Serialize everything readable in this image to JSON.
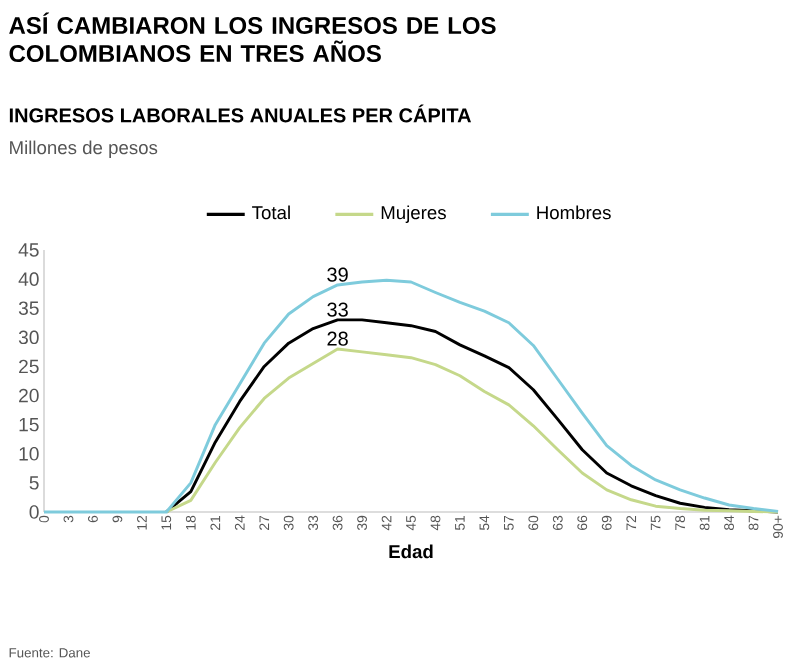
{
  "chart_data": {
    "type": "line",
    "title": "ASÍ CAMBIARON LOS INGRESOS DE LOS COLOMBIANOS EN TRES AÑOS",
    "subtitle": "INGRESOS LABORALES ANUALES PER CÁPITA",
    "xlabel": "Edad",
    "categories": [
      "0",
      "3",
      "6",
      "9",
      "12",
      "15",
      "18",
      "21",
      "24",
      "27",
      "30",
      "33",
      "36",
      "39",
      "42",
      "45",
      "48",
      "51",
      "54",
      "57",
      "60",
      "63",
      "66",
      "69",
      "72",
      "75",
      "78",
      "81",
      "84",
      "87",
      "90+"
    ],
    "series": [
      {
        "name": "Total",
        "color": "#000000",
        "values": [
          null,
          null,
          null,
          null,
          null,
          0,
          3.5,
          12,
          19,
          25,
          29,
          31.5,
          33,
          33,
          32.5,
          32,
          31,
          28.7,
          26.8,
          24.8,
          21,
          15.9,
          10.7,
          6.7,
          4.5,
          2.8,
          1.5,
          0.8,
          0.4,
          0.2,
          0
        ]
      },
      {
        "name": "Mujeres",
        "color": "#c5d88a",
        "values": [
          null,
          null,
          null,
          null,
          null,
          0,
          2,
          8.5,
          14.5,
          19.5,
          23,
          25.5,
          28,
          27.5,
          27,
          26.5,
          25.3,
          23.4,
          20.7,
          18.4,
          14.8,
          10.7,
          6.7,
          3.8,
          2.1,
          1,
          0.6,
          0.3,
          0.2,
          0.1,
          0
        ]
      },
      {
        "name": "Hombres",
        "color": "#7ecbdc",
        "values": [
          0,
          0,
          0,
          0,
          0,
          0,
          5,
          15,
          22,
          29,
          34,
          37,
          39,
          39.5,
          39.8,
          39.5,
          37.7,
          36,
          34.5,
          32.5,
          28.6,
          22.8,
          17,
          11.4,
          8,
          5.5,
          3.8,
          2.4,
          1.2,
          0.6,
          0.1
        ]
      }
    ],
    "ylim": [
      0,
      45
    ],
    "yticks": [
      0,
      5,
      10,
      15,
      20,
      25,
      30,
      35,
      40,
      45
    ],
    "legend": "top",
    "marker": "none",
    "line_style": "solid",
    "annotations": [
      "Millones de pesos",
      {
        "text": "39",
        "x": "36",
        "y": 39
      },
      {
        "text": "33",
        "x": "36",
        "y": 33
      },
      {
        "text": "28",
        "x": "36",
        "y": 28
      },
      "Fuente: Dane"
    ]
  }
}
